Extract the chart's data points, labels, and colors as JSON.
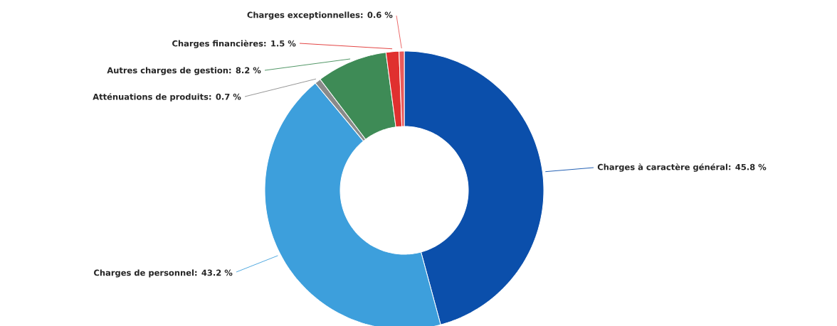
{
  "chart_data": {
    "type": "donut",
    "categories": [
      "Charges à caractère général: 45.8 %",
      "Charges de personnel: 43.2 %",
      "Atténuations de produits: 0.7 %",
      "Autres charges de gestion: 8.2 %",
      "Charges financières: 1.5 %",
      "Charges exceptionnelles: 0.6 %"
    ],
    "values": [
      45.8,
      43.2,
      0.7,
      8.2,
      1.5,
      0.6
    ],
    "colors": [
      "#0b4fab",
      "#3d9fdc",
      "#8a8a8a",
      "#3e8b56",
      "#e0302f",
      "#ea5a5a"
    ]
  }
}
